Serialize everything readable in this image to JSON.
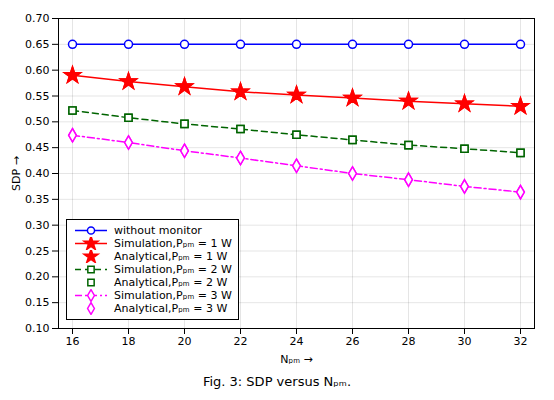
{
  "chart_data": {
    "type": "line",
    "caption": "Fig. 3: SDP versus Nₚₘ.",
    "x_label": "Nₚₘ",
    "y_label": "SDP",
    "x": [
      16,
      18,
      20,
      22,
      24,
      26,
      28,
      30,
      32
    ],
    "series": [
      {
        "name": "without monitor",
        "color": "#0000FF",
        "marker": "circle",
        "line_style": "solid",
        "values": [
          0.65,
          0.65,
          0.65,
          0.65,
          0.65,
          0.65,
          0.65,
          0.65,
          0.65
        ]
      },
      {
        "name": "Simulation,Pₚₘ = 1 W",
        "color": "#FF0000",
        "marker": "star",
        "line_style": "solid",
        "values": [
          0.59,
          0.578,
          0.568,
          0.558,
          0.552,
          0.546,
          0.54,
          0.535,
          0.53
        ]
      },
      {
        "name": "Analytical,Pₚₘ = 1 W",
        "color": "#FF0000",
        "marker": "star",
        "line_style": "none",
        "values": [
          0.59,
          0.578,
          0.568,
          0.558,
          0.552,
          0.546,
          0.54,
          0.535,
          0.53
        ]
      },
      {
        "name": "Simulation,Pₚₘ = 2 W",
        "color": "#006400",
        "marker": "square",
        "line_style": "dashed",
        "values": [
          0.522,
          0.508,
          0.496,
          0.486,
          0.475,
          0.465,
          0.455,
          0.448,
          0.44
        ]
      },
      {
        "name": "Analytical,Pₚₘ = 2 W",
        "color": "#006400",
        "marker": "square",
        "line_style": "none",
        "values": [
          0.522,
          0.508,
          0.496,
          0.486,
          0.475,
          0.465,
          0.455,
          0.448,
          0.44
        ]
      },
      {
        "name": "Simulation,Pₚₘ = 3 W",
        "color": "#FF00FF",
        "marker": "diamond",
        "line_style": "dashdot",
        "values": [
          0.474,
          0.46,
          0.444,
          0.43,
          0.415,
          0.4,
          0.388,
          0.375,
          0.364
        ]
      },
      {
        "name": "Analytical,Pₚₘ = 3 W",
        "color": "#FF00FF",
        "marker": "diamond",
        "line_style": "none",
        "values": [
          0.474,
          0.46,
          0.444,
          0.43,
          0.415,
          0.4,
          0.388,
          0.375,
          0.364
        ]
      }
    ],
    "xlim": [
      15.5,
      32.5
    ],
    "xticks": [
      16,
      18,
      20,
      22,
      24,
      26,
      28,
      30,
      32
    ],
    "ylim": [
      0.1,
      0.7
    ],
    "yticks": [
      {
        "value": 0.1,
        "label": "0.10"
      },
      0.15,
      {
        "value": 0.2,
        "label": "0.20"
      },
      0.25,
      {
        "value": 0.3,
        "label": "0.30"
      },
      0.35,
      {
        "value": 0.4,
        "label": "0.40"
      },
      0.45,
      {
        "value": 0.5,
        "label": "0.50"
      },
      0.55,
      {
        "value": 0.6,
        "label": "0.60"
      },
      0.65,
      {
        "value": 0.7,
        "label": "0.70"
      }
    ],
    "grid": true,
    "legend": "lower left"
  }
}
